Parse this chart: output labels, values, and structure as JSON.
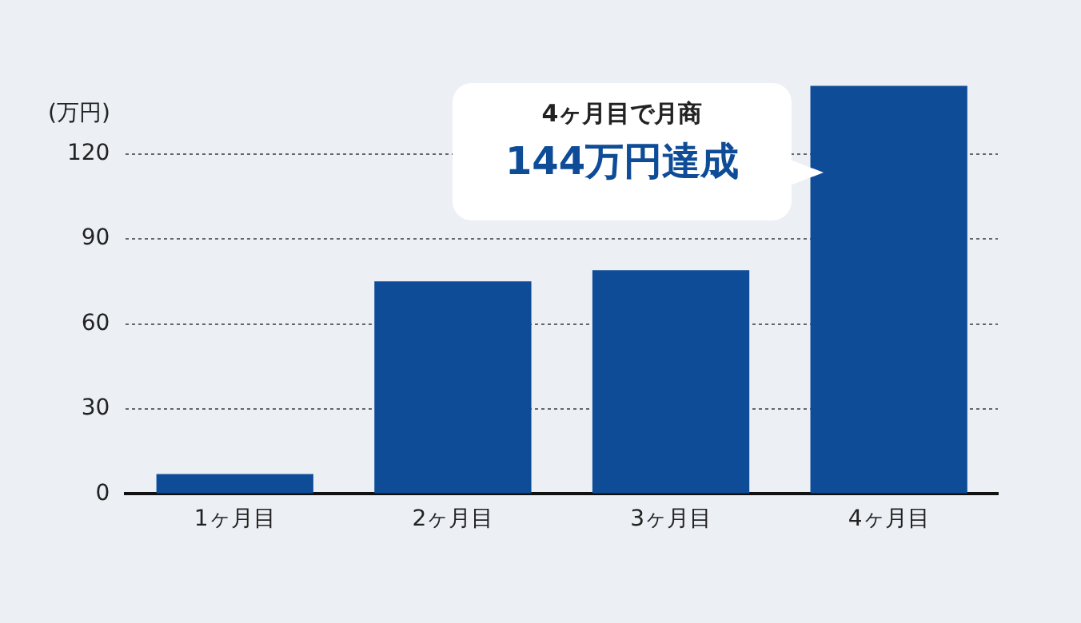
{
  "chart_data": {
    "type": "bar",
    "ylabel": "(万円)",
    "categories": [
      "1ヶ月目",
      "2ヶ月目",
      "3ヶ月目",
      "4ヶ月目"
    ],
    "values": [
      7,
      75,
      79,
      144
    ],
    "color": "#0f4c97",
    "ylim": [
      0,
      145
    ],
    "yticks": [
      0,
      30,
      60,
      90,
      120
    ],
    "grid": "y",
    "annotations": [
      "4ヶ月目で月商",
      "144万円達成"
    ]
  }
}
